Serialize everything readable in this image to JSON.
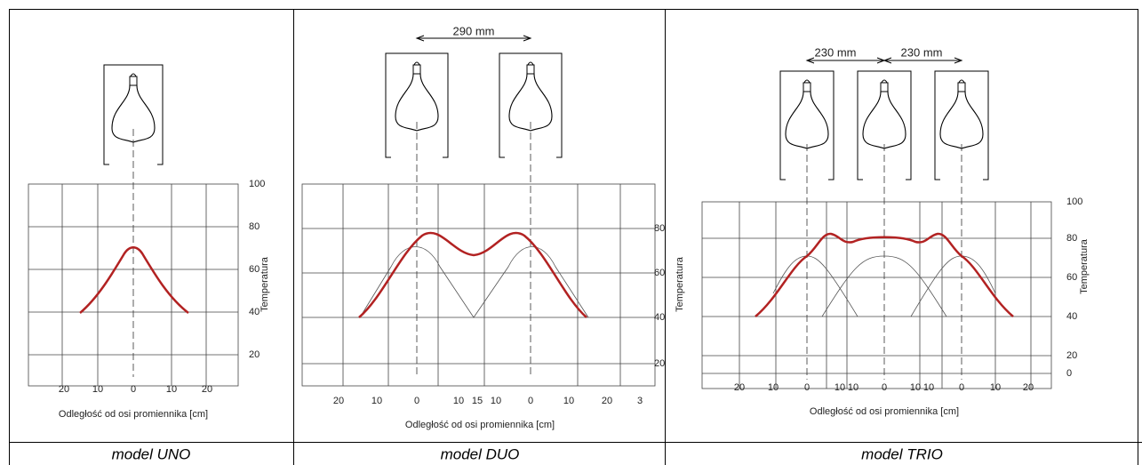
{
  "panels": [
    {
      "caption": "model UNO",
      "x_axis_label": "Odległość od osi promiennika [cm]",
      "y_axis_label": "Temperatura",
      "y_tick_labels": [
        "100",
        "80",
        "60",
        "40",
        "20"
      ],
      "x_tick_labels": [
        "20",
        "10",
        "0",
        "10",
        "20"
      ]
    },
    {
      "caption": "model DUO",
      "x_axis_label": "Odległość od osi promiennika [cm]",
      "y_axis_label": "Temperatura",
      "dimensions": [
        "290 mm"
      ],
      "y_tick_labels": [
        "80",
        "60",
        "40",
        "20"
      ],
      "x_tick_labels": [
        "20",
        "10",
        "0",
        "10",
        "15",
        "10",
        "0",
        "10",
        "20",
        "3"
      ]
    },
    {
      "caption": "model TRIO",
      "x_axis_label": "Odległość od osi promiennika [cm]",
      "y_axis_label": "Temperatura",
      "dimensions": [
        "230 mm",
        "230 mm"
      ],
      "y_tick_labels": [
        "100",
        "80",
        "60",
        "40",
        "20",
        "0"
      ],
      "x_tick_labels": [
        "20",
        "10",
        "0",
        "10",
        "10",
        "0",
        "10",
        "10",
        "0",
        "10",
        "20"
      ]
    }
  ]
}
